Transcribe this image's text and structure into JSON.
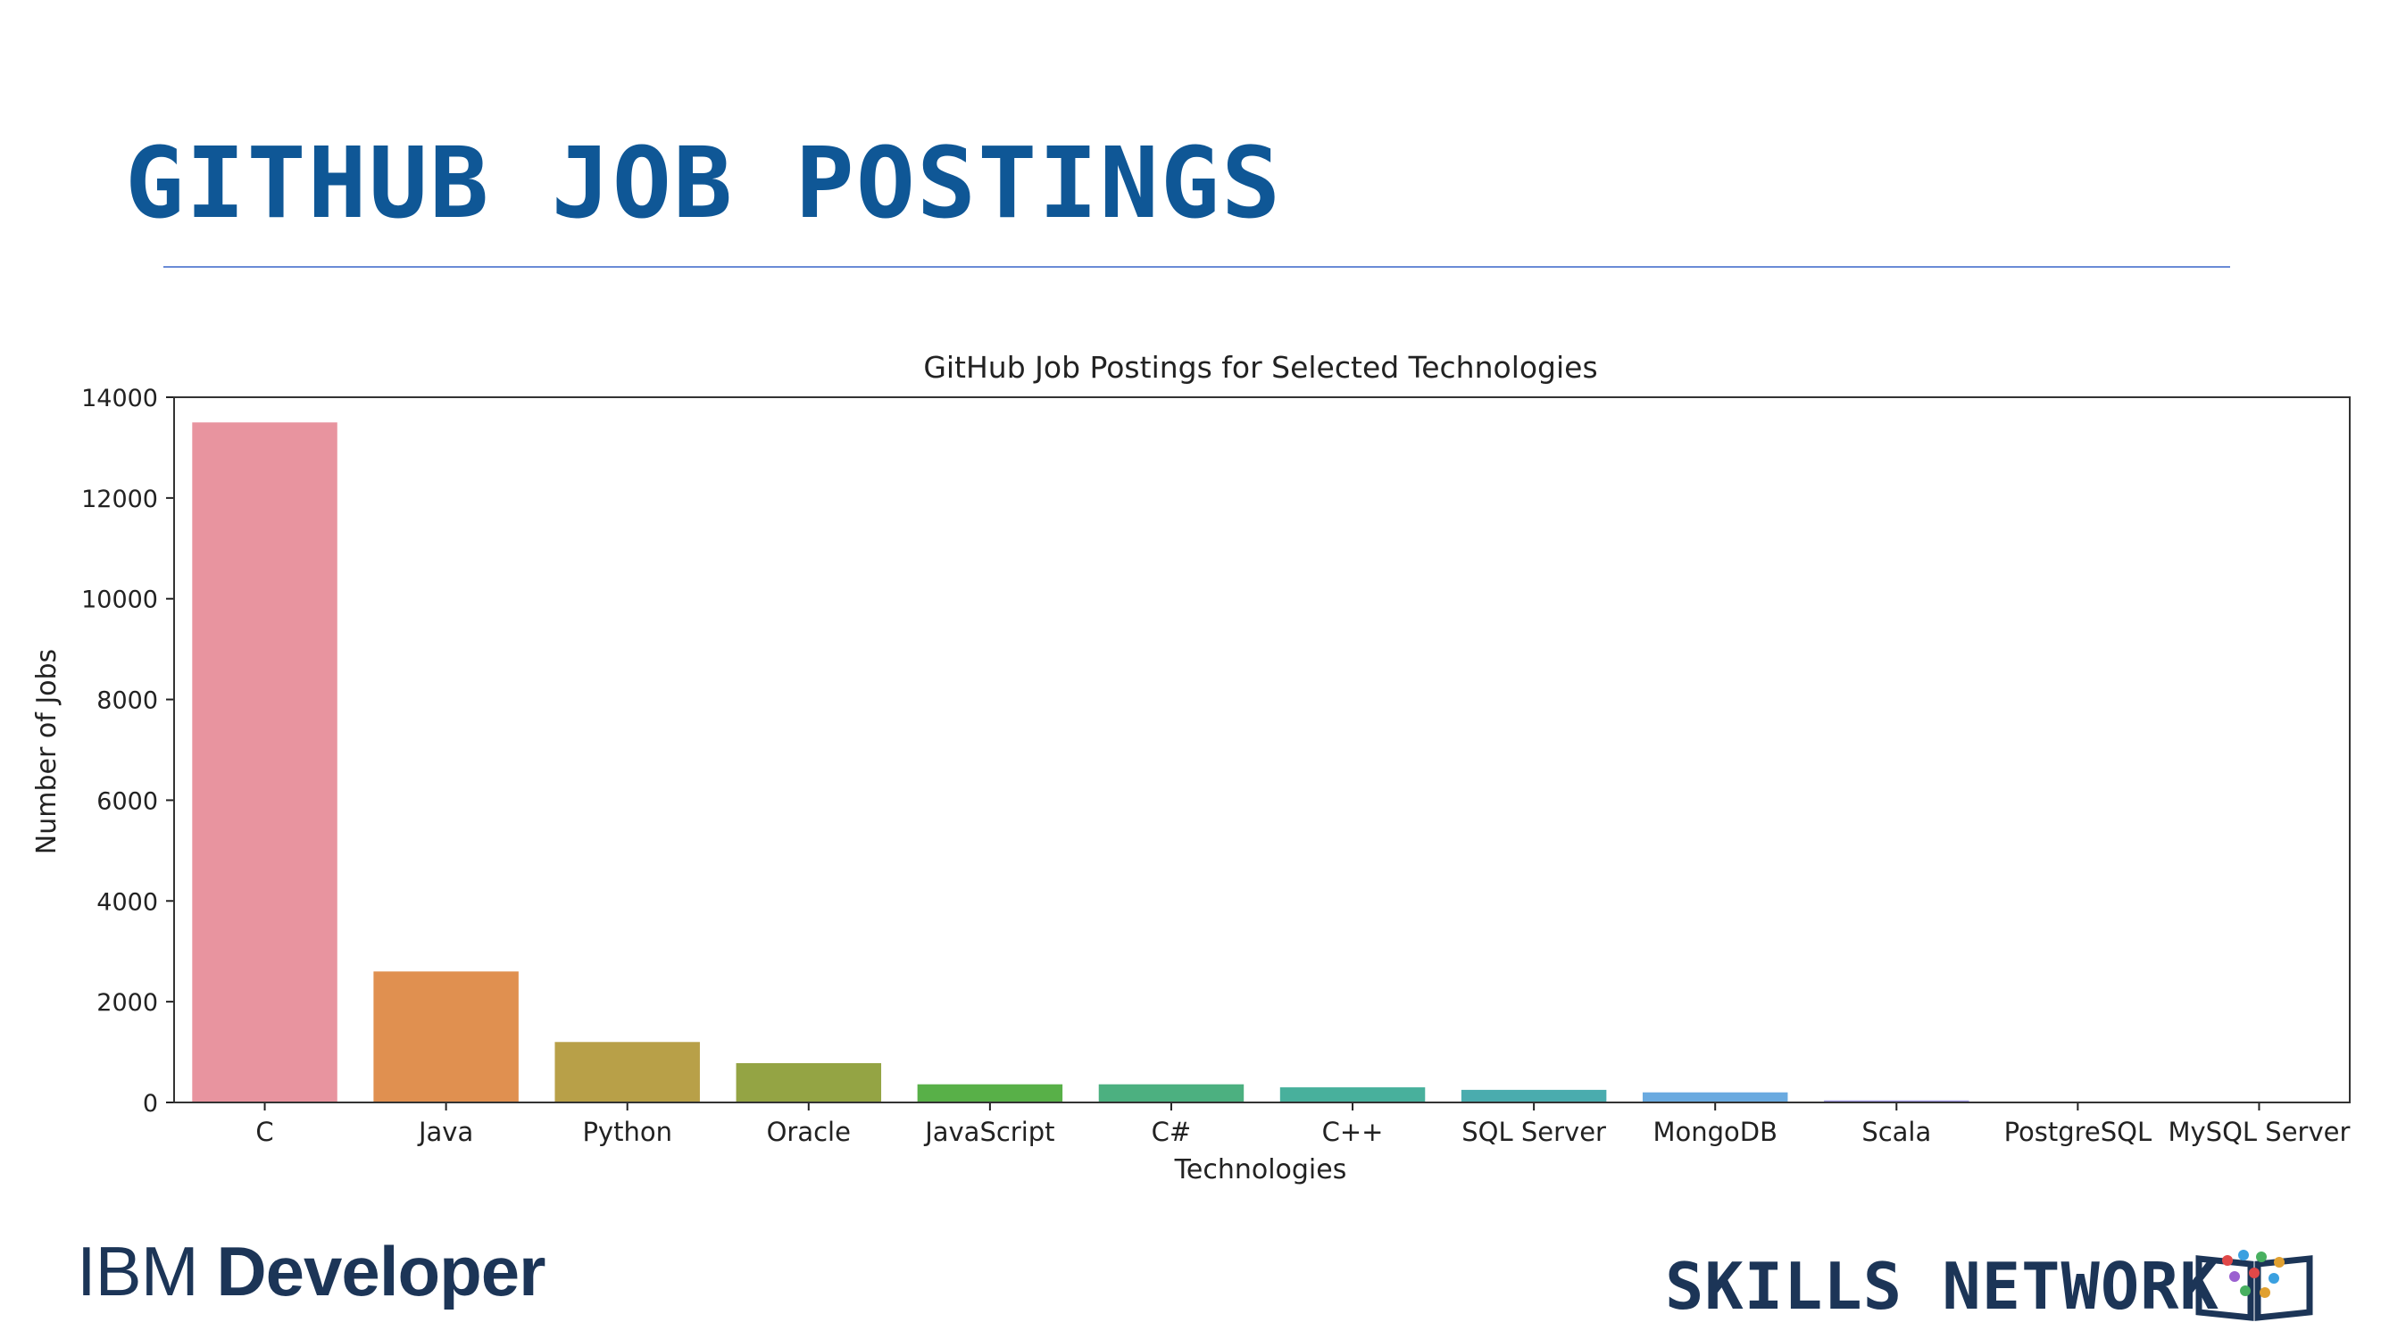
{
  "slide": {
    "title": "GITHUB JOB POSTINGS",
    "title_color": "#0f5796",
    "rule_color": "#6a8bd6"
  },
  "footer": {
    "ibm_prefix": "IBM",
    "ibm_word": "Developer",
    "skills_network": "SKILLS NETWORK"
  },
  "chart_data": {
    "type": "bar",
    "title": "GitHub Job Postings for Selected Technologies",
    "xlabel": "Technologies",
    "ylabel": "Number of Jobs",
    "ylim": [
      0,
      14000
    ],
    "yticks": [
      0,
      2000,
      4000,
      6000,
      8000,
      10000,
      12000,
      14000
    ],
    "grid": false,
    "categories": [
      "C",
      "Java",
      "Python",
      "Oracle",
      "JavaScript",
      "C#",
      "C++",
      "SQL Server",
      "MongoDB",
      "Scala",
      "PostgreSQL",
      "MySQL Server"
    ],
    "values": [
      13500,
      2600,
      1200,
      780,
      360,
      360,
      300,
      250,
      200,
      40,
      0,
      0
    ],
    "colors": [
      "#e8949f",
      "#e09050",
      "#b8a048",
      "#94a444",
      "#58b048",
      "#4cb080",
      "#48b09c",
      "#4aacae",
      "#6aaae0",
      "#a39ae4",
      "#e292d8",
      "#e894b4"
    ]
  }
}
